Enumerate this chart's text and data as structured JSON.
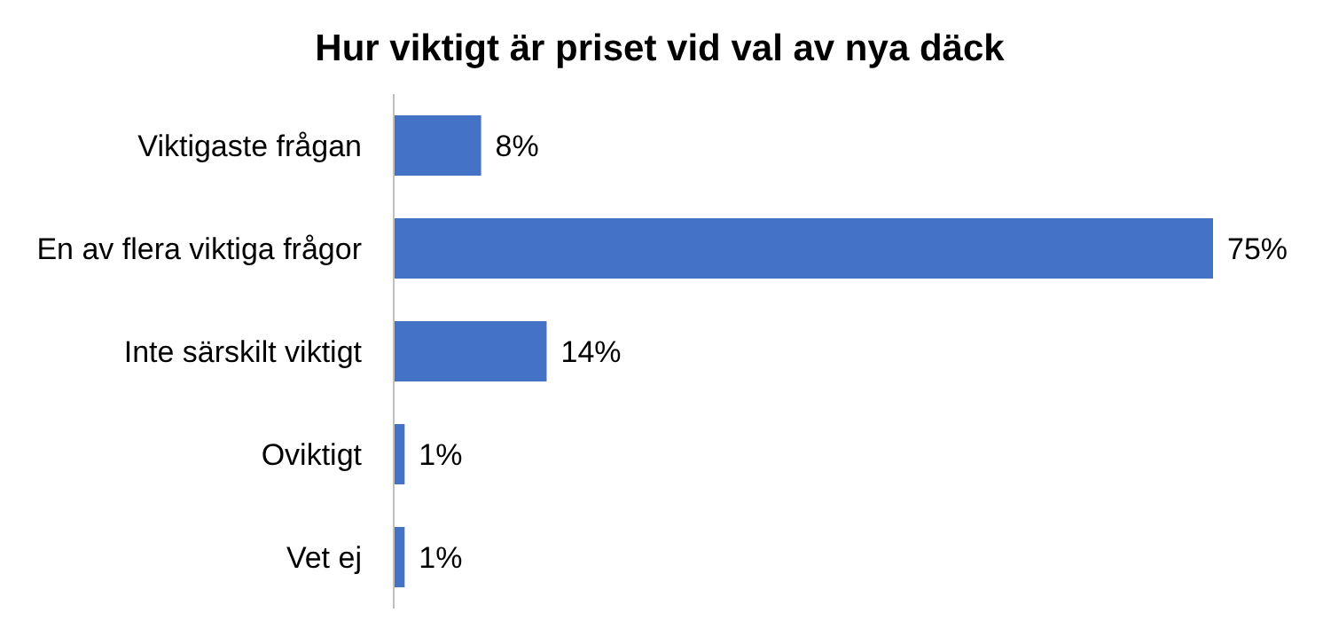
{
  "chart_data": {
    "type": "bar",
    "orientation": "horizontal",
    "title": "Hur viktigt är priset vid val av nya däck",
    "categories": [
      "Viktigaste frågan",
      "En av flera viktiga frågor",
      "Inte särskilt viktigt",
      "Oviktigt",
      "Vet ej"
    ],
    "values": [
      8,
      75,
      14,
      1,
      1
    ],
    "value_labels": [
      "8%",
      "75%",
      "14%",
      "1%",
      "1%"
    ],
    "color": "#4472c4"
  }
}
